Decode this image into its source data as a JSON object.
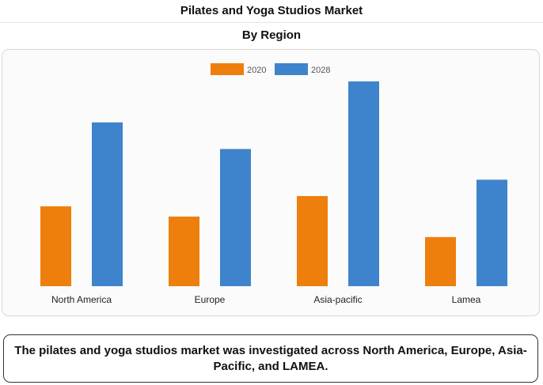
{
  "header": {
    "title": "Pilates and Yoga Studios Market",
    "subtitle": "By Region"
  },
  "note": "The pilates and yoga studios market was investigated across North America, Europe, Asia-Pacific, and LAMEA.",
  "colors": {
    "2020": "#ee7f0d",
    "2028": "#3e84cc"
  },
  "chart_data": {
    "type": "bar",
    "title": "Pilates and Yoga Studios Market",
    "subtitle": "By Region",
    "categories": [
      "North America",
      "Europe",
      "Asia-pacific",
      "Lamea"
    ],
    "series": [
      {
        "name": "2020",
        "values": [
          39,
          34,
          44,
          24
        ]
      },
      {
        "name": "2028",
        "values": [
          80,
          67,
          100,
          52
        ]
      }
    ],
    "ylim": [
      0,
      100
    ],
    "grid": false,
    "legend": "top-center"
  }
}
